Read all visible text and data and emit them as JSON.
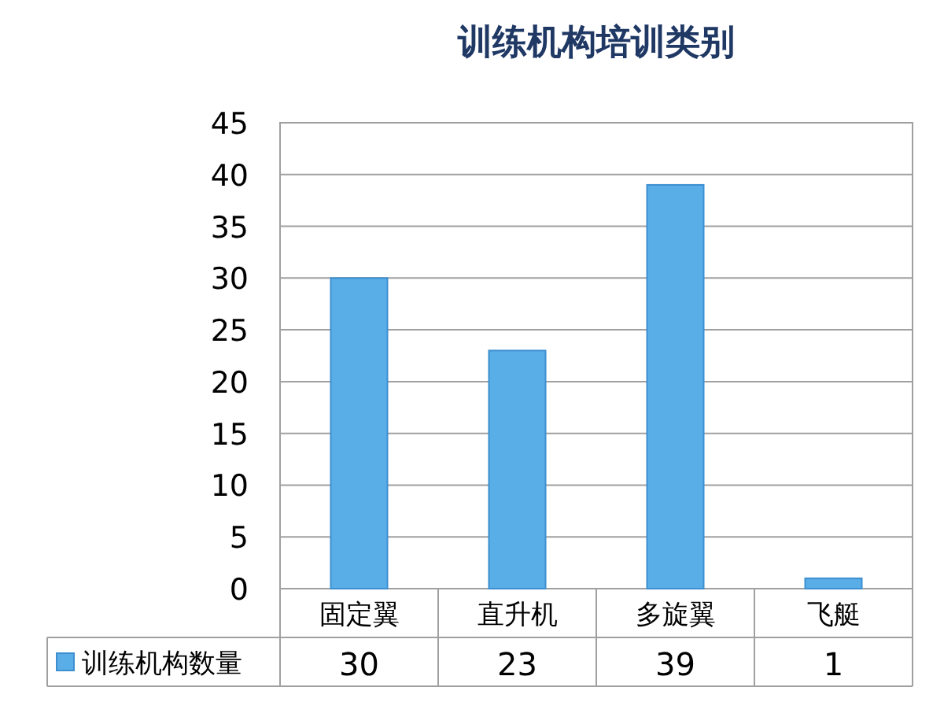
{
  "chart_data": {
    "type": "bar",
    "title": "训练机构培训类别",
    "categories": [
      "固定翼",
      "直升机",
      "多旋翼",
      "飞艇"
    ],
    "series": [
      {
        "name": "训练机构数量",
        "color": "#5aaee8",
        "values": [
          30,
          23,
          39,
          1
        ]
      }
    ],
    "ylim": [
      0,
      45
    ],
    "yticks": [
      0,
      5,
      10,
      15,
      20,
      25,
      30,
      35,
      40,
      45
    ],
    "grid": "y",
    "legend": "bottom",
    "data_labels": true
  }
}
